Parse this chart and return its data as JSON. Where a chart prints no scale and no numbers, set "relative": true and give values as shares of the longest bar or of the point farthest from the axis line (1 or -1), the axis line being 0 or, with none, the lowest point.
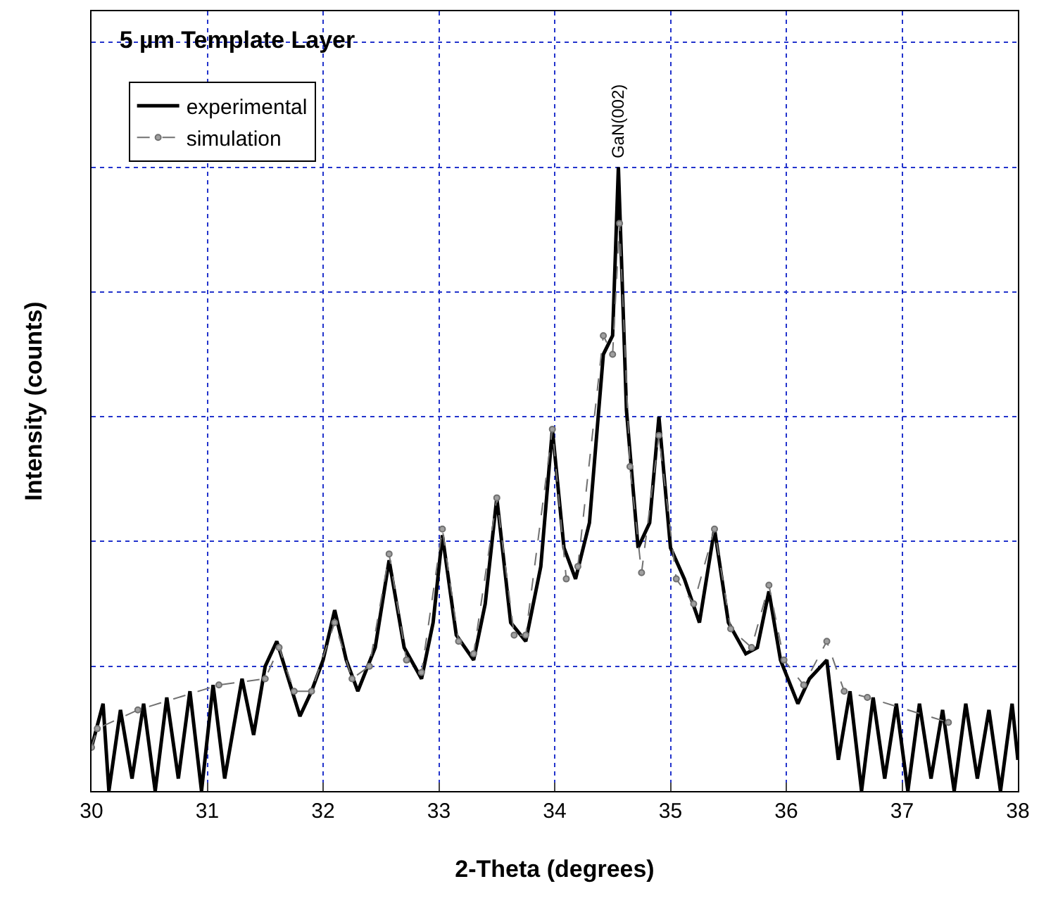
{
  "chart_data": {
    "type": "line",
    "title": "5 µm Template Layer",
    "xlabel": "2-Theta (degrees)",
    "ylabel": "Intensity (counts)",
    "relative": true,
    "xlim": [
      30,
      38
    ],
    "xticks": [
      30,
      31,
      32,
      33,
      34,
      35,
      36,
      37,
      38
    ],
    "grid": true,
    "legend": "top left",
    "annotations": [
      {
        "text": "GaN(002)",
        "x": 34.55,
        "y": 1.0
      }
    ],
    "series": [
      {
        "name": "experimental",
        "color": "#000000",
        "line_style": "solid",
        "marker": "none",
        "x": [
          30.0,
          30.1,
          30.15,
          30.25,
          30.35,
          30.45,
          30.55,
          30.65,
          30.75,
          30.85,
          30.95,
          31.05,
          31.15,
          31.3,
          31.4,
          31.5,
          31.6,
          31.7,
          31.8,
          31.9,
          32.0,
          32.1,
          32.2,
          32.3,
          32.45,
          32.57,
          32.7,
          32.85,
          32.95,
          33.03,
          33.15,
          33.3,
          33.4,
          33.5,
          33.62,
          33.75,
          33.88,
          33.98,
          34.08,
          34.18,
          34.3,
          34.42,
          34.5,
          34.55,
          34.62,
          34.72,
          34.82,
          34.9,
          35.0,
          35.12,
          35.25,
          35.38,
          35.5,
          35.65,
          35.75,
          35.85,
          35.95,
          36.1,
          36.2,
          36.35,
          36.45,
          36.55,
          36.65,
          36.75,
          36.85,
          36.95,
          37.05,
          37.15,
          37.25,
          37.35,
          37.45,
          37.55,
          37.65,
          37.75,
          37.85,
          37.95,
          38.0
        ],
        "values": [
          0.07,
          0.14,
          0.0,
          0.13,
          0.02,
          0.14,
          0.0,
          0.15,
          0.02,
          0.16,
          0.0,
          0.17,
          0.02,
          0.18,
          0.09,
          0.2,
          0.24,
          0.18,
          0.12,
          0.16,
          0.21,
          0.29,
          0.21,
          0.16,
          0.23,
          0.37,
          0.23,
          0.18,
          0.27,
          0.41,
          0.25,
          0.21,
          0.3,
          0.47,
          0.27,
          0.24,
          0.36,
          0.58,
          0.39,
          0.34,
          0.43,
          0.7,
          0.73,
          1.0,
          0.61,
          0.39,
          0.43,
          0.6,
          0.39,
          0.34,
          0.27,
          0.42,
          0.27,
          0.22,
          0.23,
          0.32,
          0.21,
          0.14,
          0.18,
          0.21,
          0.05,
          0.16,
          0.0,
          0.15,
          0.02,
          0.14,
          0.0,
          0.14,
          0.02,
          0.13,
          0.0,
          0.14,
          0.02,
          0.13,
          0.0,
          0.14,
          0.05
        ]
      },
      {
        "name": "simulation",
        "color": "#707070",
        "line_style": "dashed",
        "marker": "circle",
        "x": [
          30.0,
          30.05,
          30.4,
          31.1,
          31.5,
          31.62,
          31.75,
          31.9,
          32.1,
          32.25,
          32.4,
          32.57,
          32.72,
          32.85,
          33.03,
          33.17,
          33.3,
          33.5,
          33.65,
          33.75,
          33.98,
          34.1,
          34.2,
          34.42,
          34.5,
          34.56,
          34.65,
          34.75,
          34.9,
          35.05,
          35.2,
          35.38,
          35.52,
          35.7,
          35.85,
          35.98,
          36.15,
          36.35,
          36.5,
          36.7,
          37.4
        ],
        "values": [
          0.07,
          0.1,
          0.13,
          0.17,
          0.18,
          0.23,
          0.16,
          0.16,
          0.27,
          0.18,
          0.2,
          0.38,
          0.21,
          0.19,
          0.42,
          0.24,
          0.22,
          0.47,
          0.25,
          0.25,
          0.58,
          0.34,
          0.36,
          0.73,
          0.7,
          0.91,
          0.52,
          0.35,
          0.57,
          0.34,
          0.3,
          0.42,
          0.26,
          0.23,
          0.33,
          0.21,
          0.17,
          0.24,
          0.16,
          0.15,
          0.11
        ]
      }
    ]
  }
}
